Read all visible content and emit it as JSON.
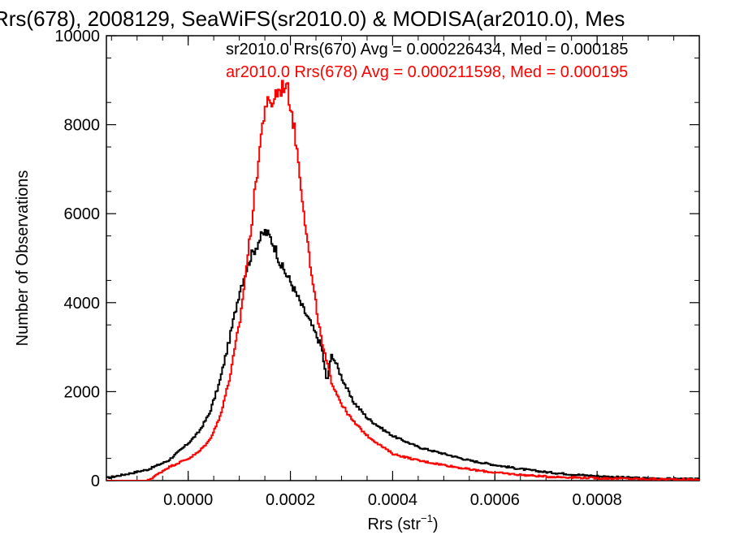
{
  "chart_data": {
    "type": "line",
    "title": "Rrs(678), 2008129, SeaWiFS(sr2010.0) & MODISA(ar2010.0), Mes",
    "xlabel": "Rrs (str",
    "xlabel_sup": "−1",
    "xlabel_tail": ")",
    "ylabel": "Number of Observations",
    "xlim": [
      -0.00016,
      0.001
    ],
    "ylim": [
      0,
      10000
    ],
    "x_ticks": [
      "0.0000",
      "0.0002",
      "0.0004",
      "0.0006",
      "0.0008"
    ],
    "x_tick_values": [
      0.0,
      0.0002,
      0.0004,
      0.0006,
      0.0008
    ],
    "y_ticks": [
      "0",
      "2000",
      "4000",
      "6000",
      "8000",
      "10000"
    ],
    "y_tick_values": [
      0,
      2000,
      4000,
      6000,
      8000,
      10000
    ],
    "grid": false,
    "legend_position": "top-center",
    "series": [
      {
        "name": "sr2010.0 Rrs(670) Avg = 0.000226434, Med = 0.000185",
        "color": "#000000",
        "x": [
          -0.00016,
          -0.00012,
          -8e-05,
          -6e-05,
          -4e-05,
          -2e-05,
          0.0,
          2e-05,
          3e-05,
          4e-05,
          6e-05,
          8e-05,
          0.0001,
          0.00012,
          0.00014,
          0.00015,
          0.00016,
          0.00017,
          0.00018,
          0.0002,
          0.00022,
          0.00024,
          0.00026,
          0.00027,
          0.00028,
          0.0003,
          0.00032,
          0.00035,
          0.00038,
          0.0004,
          0.00045,
          0.0005,
          0.00055,
          0.0006,
          0.00065,
          0.0007,
          0.00075,
          0.0008,
          0.00085,
          0.0009,
          0.00095,
          0.001
        ],
        "values": [
          60,
          150,
          250,
          350,
          450,
          650,
          850,
          1100,
          1300,
          1500,
          2200,
          3200,
          4300,
          5000,
          5450,
          5600,
          5450,
          5200,
          4850,
          4450,
          3950,
          3500,
          3000,
          2200,
          2850,
          2300,
          1800,
          1400,
          1150,
          1000,
          750,
          600,
          450,
          350,
          260,
          190,
          140,
          100,
          70,
          50,
          40,
          30
        ]
      },
      {
        "name": "ar2010.0 Rrs(678) Avg = 0.000211598, Med = 0.000195",
        "color": "#ff0000",
        "x": [
          -0.00016,
          -8e-05,
          -6e-05,
          -4e-05,
          -2e-05,
          0.0,
          2e-05,
          4e-05,
          6e-05,
          8e-05,
          0.0001,
          0.00012,
          0.00014,
          0.00015,
          0.00016,
          0.00017,
          0.00018,
          0.00019,
          0.0002,
          0.00021,
          0.00022,
          0.00024,
          0.00026,
          0.00028,
          0.0003,
          0.00032,
          0.00035,
          0.00038,
          0.0004,
          0.00045,
          0.0005,
          0.00055,
          0.0006,
          0.00065,
          0.0007,
          0.0008,
          0.0009,
          0.001
        ],
        "values": [
          0,
          0,
          150,
          300,
          400,
          500,
          650,
          900,
          1400,
          2300,
          3600,
          5500,
          7600,
          8500,
          8400,
          8700,
          8800,
          8950,
          8400,
          7600,
          6600,
          4600,
          3100,
          2200,
          1700,
          1350,
          1000,
          750,
          600,
          450,
          350,
          250,
          180,
          130,
          90,
          55,
          35,
          20
        ]
      }
    ]
  }
}
